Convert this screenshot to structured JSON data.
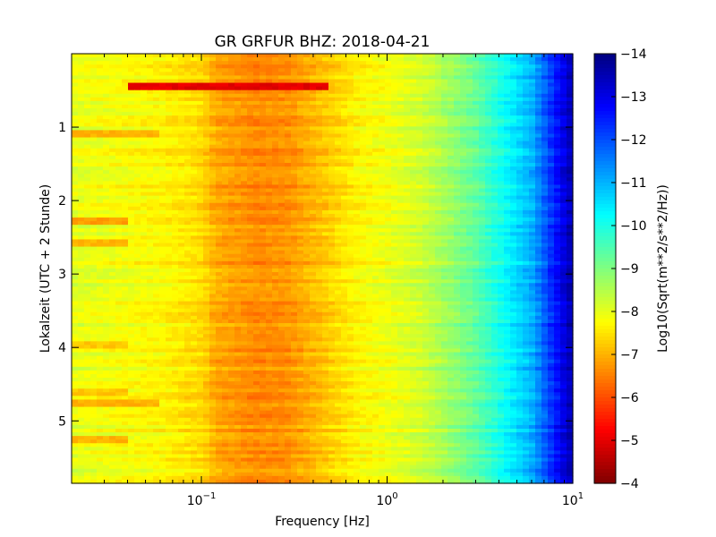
{
  "chart_data": {
    "type": "heatmap",
    "title": "GR GRFUR BHZ: 2018-04-21",
    "xlabel": "Frequency [Hz]",
    "ylabel": "Lokalzeit (UTC + 2 Stunde)",
    "colorbar_label": "Log10(Sqrt(m**2/s**2/Hz))",
    "x_scale": "log",
    "xlim": [
      0.02,
      10
    ],
    "ylim": [
      5.85,
      0
    ],
    "clim": [
      -14,
      -4
    ],
    "colormap": "jet",
    "x_ticks": [
      {
        "value": 0.1,
        "base": "10",
        "exp": "−1"
      },
      {
        "value": 1,
        "base": "10",
        "exp": "0"
      },
      {
        "value": 10,
        "base": "10",
        "exp": "1"
      }
    ],
    "y_ticks": [
      {
        "value": 1,
        "label": "1"
      },
      {
        "value": 2,
        "label": "2"
      },
      {
        "value": 3,
        "label": "3"
      },
      {
        "value": 4,
        "label": "4"
      },
      {
        "value": 5,
        "label": "5"
      }
    ],
    "colorbar_ticks": [
      {
        "value": -4,
        "label": "−4"
      },
      {
        "value": -5,
        "label": "−5"
      },
      {
        "value": -6,
        "label": "−6"
      },
      {
        "value": -7,
        "label": "−7"
      },
      {
        "value": -8,
        "label": "−8"
      },
      {
        "value": -9,
        "label": "−9"
      },
      {
        "value": -10,
        "label": "−10"
      },
      {
        "value": -11,
        "label": "−11"
      },
      {
        "value": -12,
        "label": "−12"
      },
      {
        "value": -13,
        "label": "−13"
      },
      {
        "value": -14,
        "label": "−14"
      }
    ],
    "spectrum_profile": {
      "frequencies": [
        0.02,
        0.04,
        0.06,
        0.1,
        0.12,
        0.2,
        0.3,
        0.5,
        0.7,
        1.0,
        1.5,
        2.0,
        3.0,
        4.0,
        6.0,
        8.0,
        10.0
      ],
      "values": [
        -8.0,
        -7.8,
        -7.7,
        -7.4,
        -6.9,
        -6.6,
        -6.7,
        -7.3,
        -7.7,
        -7.9,
        -8.2,
        -8.6,
        -9.3,
        -10.0,
        -11.0,
        -12.5,
        -13.6
      ]
    },
    "events": [
      {
        "time": 0.43,
        "fmin": 0.04,
        "fmax": 0.5,
        "value": -5.0
      },
      {
        "time": 1.1,
        "fmin": 0.02,
        "fmax": 0.06,
        "value": -7.0
      },
      {
        "time": 2.28,
        "fmin": 0.02,
        "fmax": 0.04,
        "value": -6.8
      },
      {
        "time": 2.6,
        "fmin": 0.02,
        "fmax": 0.04,
        "value": -7.0
      },
      {
        "time": 3.95,
        "fmin": 0.02,
        "fmax": 0.04,
        "value": -7.2
      },
      {
        "time": 4.6,
        "fmin": 0.02,
        "fmax": 0.04,
        "value": -7.2
      },
      {
        "time": 4.78,
        "fmin": 0.02,
        "fmax": 0.06,
        "value": -7.0
      },
      {
        "time": 5.25,
        "fmin": 0.02,
        "fmax": 0.04,
        "value": -7.0
      }
    ]
  }
}
